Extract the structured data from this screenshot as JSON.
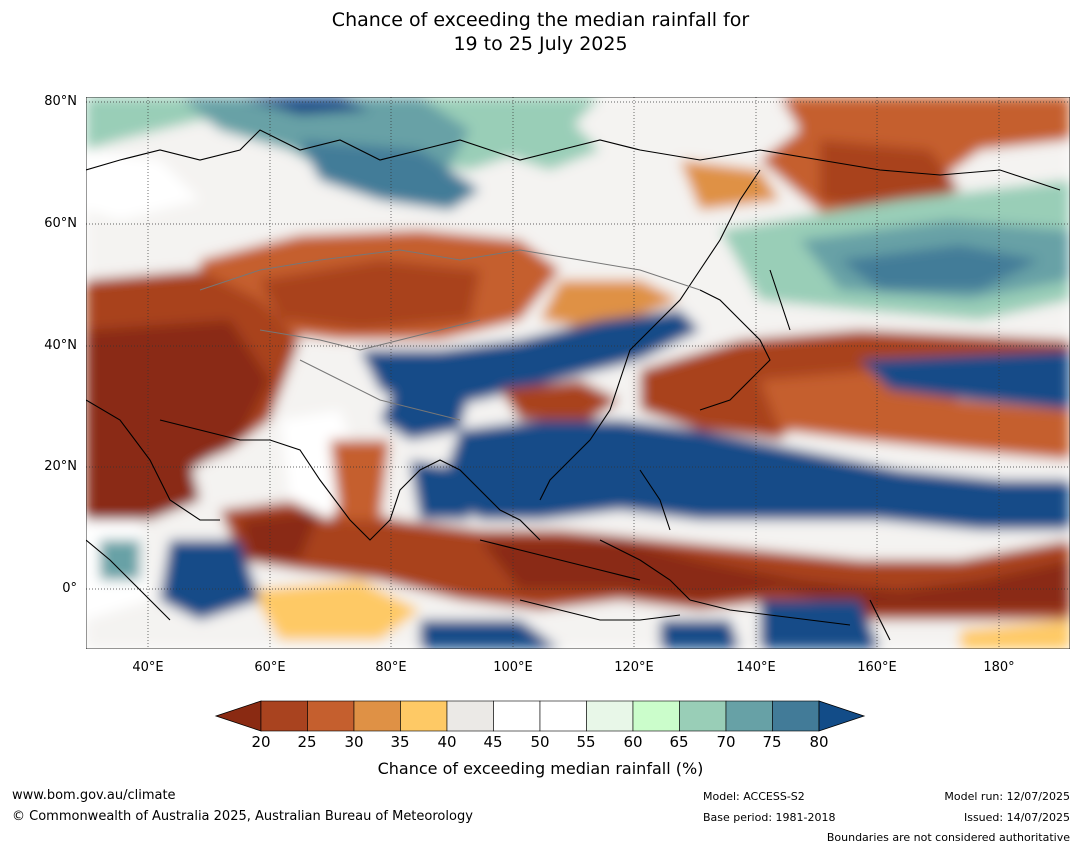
{
  "title": {
    "line1": "Chance of exceeding the median rainfall for",
    "line2": "19 to 25 July 2025"
  },
  "map": {
    "lat_labels": [
      "80°N",
      "60°N",
      "40°N",
      "20°N",
      "0°"
    ],
    "lon_labels": [
      "40°E",
      "60°E",
      "80°E",
      "100°E",
      "120°E",
      "140°E",
      "160°E",
      "180°"
    ],
    "lat_range": [
      -10,
      80
    ],
    "lon_range": [
      30,
      190
    ]
  },
  "colorbar": {
    "title": "Chance of exceeding median rainfall (%)",
    "ticks": [
      "20",
      "25",
      "30",
      "35",
      "40",
      "45",
      "50",
      "55",
      "60",
      "65",
      "70",
      "75",
      "80"
    ],
    "colors": [
      "#8a2a12",
      "#a9431f",
      "#c55f2e",
      "#df9145",
      "#fec965",
      "#ebe9e6",
      "#ffffff",
      "#ffffff",
      "#e8f7e8",
      "#cbfdcb",
      "#99ceb7",
      "#67a1a6",
      "#427b98",
      "#124c88"
    ]
  },
  "footer": {
    "website": "www.bom.gov.au/climate",
    "copyright": "© Commonwealth of Australia 2025, Australian Bureau of Meteorology",
    "model": "Model: ACCESS-S2",
    "base_period": "Base period: 1981-2018",
    "model_run": "Model run: 12/07/2025",
    "issued": "Issued: 14/07/2025",
    "disclaimer": "Boundaries are not considered authoritative"
  }
}
